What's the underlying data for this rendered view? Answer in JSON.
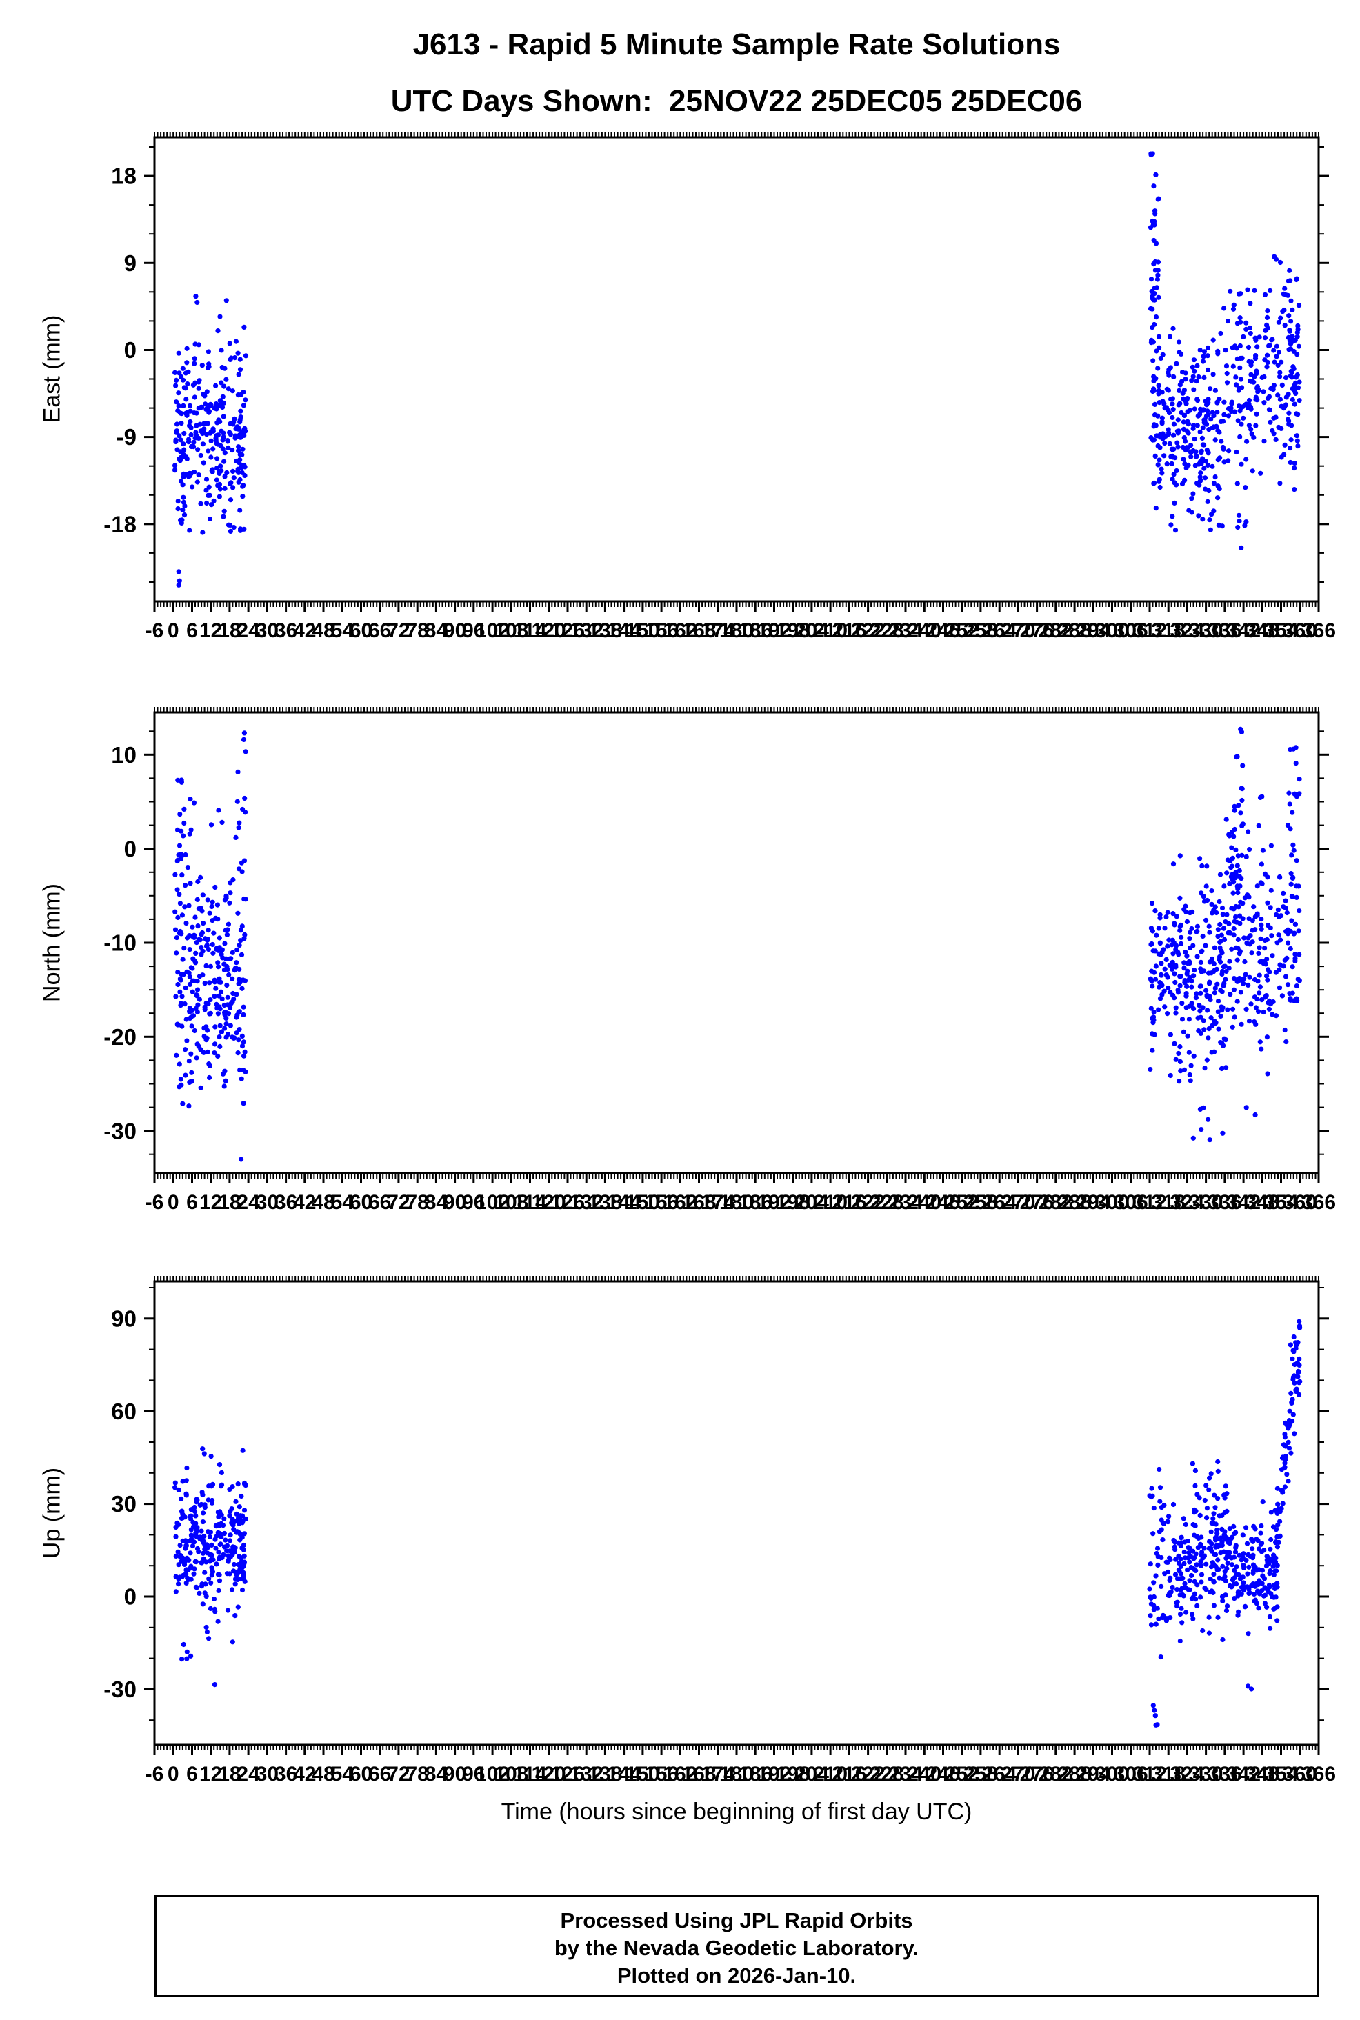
{
  "header": {
    "title_line1": "J613 - Rapid 5 Minute Sample Rate Solutions",
    "title_line2": "UTC Days Shown:  25NOV22 25DEC05 25DEC06"
  },
  "xaxis_label": "Time (hours since beginning of first day UTC)",
  "footer": {
    "line1": "Processed Using JPL Rapid Orbits",
    "line2": "by the Nevada Geodetic Laboratory.",
    "line3": "Plotted on 2026-Jan-10."
  },
  "colors": {
    "points": "#0000ff",
    "axis": "#000000"
  },
  "chart_data": [
    {
      "type": "scatter",
      "ylabel": "East (mm)",
      "xlabel": "",
      "xlim": [
        -6,
        366
      ],
      "xtick_step": 6,
      "xminor_step": 1,
      "ylim": [
        -26,
        22
      ],
      "yticks": [
        -18,
        -9,
        0,
        9,
        18
      ],
      "yminor_step": 3,
      "clusters": [
        {
          "seed": 101,
          "n": 280,
          "x": [
            0.5,
            23.2
          ],
          "y_mean": -8,
          "y_sd": 5.5,
          "y_clip": [
            -19,
            6.5
          ]
        },
        {
          "seed": 102,
          "n": 3,
          "x": [
            1.2,
            2.0
          ],
          "y_mean": -23,
          "y_sd": 1.5,
          "y_clip": [
            -24.5,
            -20
          ]
        },
        {
          "seed": 103,
          "n": 20,
          "x": [
            20,
            23.2
          ],
          "y_mean": -9,
          "y_sd": 4,
          "y_clip": [
            -18.6,
            0
          ]
        },
        {
          "seed": 104,
          "n": 55,
          "x": [
            312.3,
            315
          ],
          "y_mean": 4,
          "y_sd": 9,
          "y_clip": [
            -10,
            20.5
          ]
        },
        {
          "seed": 105,
          "n": 260,
          "x": [
            313,
            336
          ],
          "y_mean": -8,
          "y_sd": 4.5,
          "y_clip": [
            -19,
            4.5
          ]
        },
        {
          "seed": 106,
          "n": 210,
          "x": [
            336,
            360
          ],
          "y_mean": -2.5,
          "y_sd": 5,
          "y_clip": [
            -15,
            12.5
          ]
        },
        {
          "seed": 107,
          "n": 8,
          "x": [
            339.5,
            343
          ],
          "y_mean": -17,
          "y_sd": 2.5,
          "y_clip": [
            -21.5,
            -11
          ]
        },
        {
          "seed": 108,
          "n": 25,
          "x": [
            356,
            360
          ],
          "y_mean": -5,
          "y_sd": 7,
          "y_clip": [
            -18.5,
            8
          ]
        }
      ]
    },
    {
      "type": "scatter",
      "ylabel": "North (mm)",
      "xlabel": "",
      "xlim": [
        -6,
        366
      ],
      "xtick_step": 6,
      "xminor_step": 1,
      "ylim": [
        -34.5,
        14.5
      ],
      "yticks": [
        -30,
        -20,
        -10,
        0,
        10
      ],
      "yminor_step": 2.5,
      "clusters": [
        {
          "seed": 201,
          "n": 290,
          "x": [
            0.5,
            23.2
          ],
          "y_mean": -14,
          "y_sd": 6.5,
          "y_clip": [
            -28,
            6
          ]
        },
        {
          "seed": 202,
          "n": 22,
          "x": [
            1,
            4
          ],
          "y_mean": 0,
          "y_sd": 4,
          "y_clip": [
            -8,
            8
          ]
        },
        {
          "seed": 203,
          "n": 18,
          "x": [
            20.5,
            23.2
          ],
          "y_mean": -2,
          "y_sd": 7,
          "y_clip": [
            -15,
            12.5
          ]
        },
        {
          "seed": 204,
          "n": 1,
          "x": [
            21.5,
            21.8
          ],
          "y_mean": -33,
          "y_sd": 0.1,
          "y_clip": [
            -33.5,
            -32.5
          ]
        },
        {
          "seed": 205,
          "n": 270,
          "x": [
            312,
            336
          ],
          "y_mean": -13,
          "y_sd": 5,
          "y_clip": [
            -25,
            1.5
          ]
        },
        {
          "seed": 206,
          "n": 9,
          "x": [
            317,
            336
          ],
          "y_mean": -27,
          "y_sd": 2.5,
          "y_clip": [
            -31,
            -23
          ]
        },
        {
          "seed": 207,
          "n": 210,
          "x": [
            336,
            360
          ],
          "y_mean": -10,
          "y_sd": 6,
          "y_clip": [
            -24,
            6
          ]
        },
        {
          "seed": 208,
          "n": 45,
          "x": [
            336.5,
            342
          ],
          "y_mean": 2,
          "y_sd": 6,
          "y_clip": [
            -10,
            13.5
          ]
        },
        {
          "seed": 209,
          "n": 18,
          "x": [
            356.5,
            360
          ],
          "y_mean": 0,
          "y_sd": 6.5,
          "y_clip": [
            -13,
            12.5
          ]
        },
        {
          "seed": 210,
          "n": 2,
          "x": [
            340,
            346
          ],
          "y_mean": -29,
          "y_sd": 1,
          "y_clip": [
            -30.5,
            -27
          ]
        }
      ]
    },
    {
      "type": "scatter",
      "ylabel": "Up (mm)",
      "xlabel": "Time (hours since beginning of first day UTC)",
      "xlim": [
        -6,
        366
      ],
      "xtick_step": 6,
      "xminor_step": 1,
      "ylim": [
        -48,
        102
      ],
      "yticks": [
        -30,
        0,
        30,
        60,
        90
      ],
      "yminor_step": 10,
      "clusters": [
        {
          "seed": 301,
          "n": 290,
          "x": [
            0.5,
            23.2
          ],
          "y_mean": 17,
          "y_sd": 11,
          "y_clip": [
            -12,
            54
          ]
        },
        {
          "seed": 302,
          "n": 9,
          "x": [
            1,
            22.5
          ],
          "y_mean": -20,
          "y_sd": 6,
          "y_clip": [
            -31,
            -9
          ]
        },
        {
          "seed": 303,
          "n": 260,
          "x": [
            312,
            337
          ],
          "y_mean": 12,
          "y_sd": 13,
          "y_clip": [
            -26,
            50
          ]
        },
        {
          "seed": 304,
          "n": 5,
          "x": [
            312.3,
            316
          ],
          "y_mean": -38,
          "y_sd": 4,
          "y_clip": [
            -45,
            -29
          ]
        },
        {
          "seed": 305,
          "n": 160,
          "x": [
            337,
            353
          ],
          "y_mean": 8,
          "y_sd": 9,
          "y_clip": [
            -14,
            38
          ]
        },
        {
          "seed": 306,
          "n": 2,
          "x": [
            343,
            345.5
          ],
          "y_mean": -30,
          "y_sd": 1.5,
          "y_clip": [
            -33,
            -27
          ]
        },
        {
          "seed": 307,
          "n": 85,
          "x": [
            352,
            360
          ],
          "trend": [
            18,
            82
          ],
          "y_sd": 8,
          "y_clip": [
            -2,
            93.5
          ]
        }
      ]
    }
  ]
}
